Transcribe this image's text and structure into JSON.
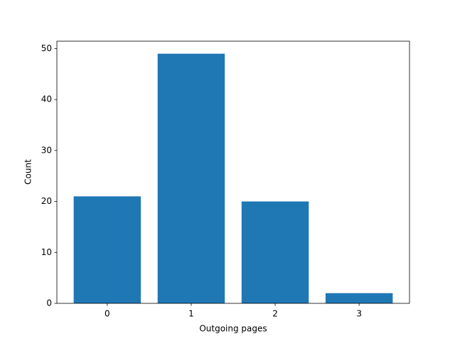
{
  "chart_data": {
    "type": "bar",
    "x": [
      0,
      1,
      2,
      3
    ],
    "values": [
      21,
      49,
      20,
      2
    ],
    "color": "#1f77b4",
    "xlabel": "Outgoing pages",
    "ylabel": "Count",
    "xlim": [
      -0.6,
      3.6
    ],
    "xticks": [
      0,
      1,
      2,
      3
    ],
    "ylim": [
      0,
      51.45
    ],
    "yticks": [
      0,
      10,
      20,
      30,
      40,
      50
    ],
    "grid": false
  }
}
